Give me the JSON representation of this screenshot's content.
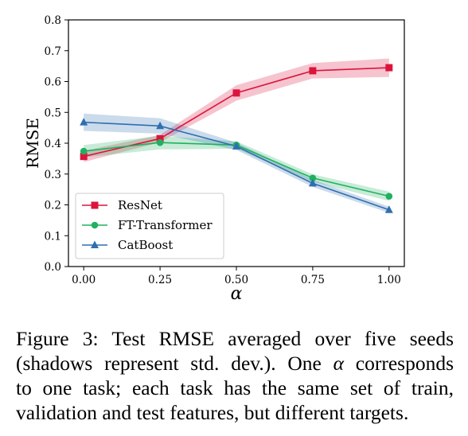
{
  "chart_data": {
    "type": "line",
    "ylabel": "RMSE",
    "xlabel": "α",
    "xlim": [
      -0.05,
      1.05
    ],
    "ylim": [
      0.0,
      0.8
    ],
    "x": [
      0.0,
      0.25,
      0.5,
      0.75,
      1.0
    ],
    "xtick_labels": [
      "0.00",
      "0.25",
      "0.50",
      "0.75",
      "1.00"
    ],
    "yticks": [
      0.0,
      0.1,
      0.2,
      0.3,
      0.4,
      0.5,
      0.6,
      0.7,
      0.8
    ],
    "ytick_labels": [
      "0.0",
      "0.1",
      "0.2",
      "0.3",
      "0.4",
      "0.5",
      "0.6",
      "0.7",
      "0.8"
    ],
    "grid": false,
    "legend_position": "lower-left",
    "series": [
      {
        "name": "ResNet",
        "color": "#dc143c",
        "marker": "square",
        "values": [
          0.357,
          0.415,
          0.563,
          0.635,
          0.645
        ],
        "std": [
          0.018,
          0.012,
          0.025,
          0.025,
          0.03
        ]
      },
      {
        "name": "FT-Transformer",
        "color": "#20b060",
        "marker": "circle",
        "values": [
          0.374,
          0.402,
          0.394,
          0.287,
          0.228
        ],
        "std": [
          0.02,
          0.022,
          0.012,
          0.012,
          0.015
        ]
      },
      {
        "name": "CatBoost",
        "color": "#2f6fb0",
        "marker": "triangle",
        "values": [
          0.468,
          0.456,
          0.39,
          0.27,
          0.184
        ],
        "std": [
          0.028,
          0.025,
          0.012,
          0.012,
          0.01
        ]
      }
    ]
  },
  "caption": {
    "line1": "Figure 3:  Test RMSE averaged over five seeds",
    "line2_a": "(shadows represent std. dev.). One ",
    "line2_alpha": "α",
    "line2_b": " corresponds",
    "line3": "to one task; each task has the same set of train,",
    "line4": "validation and test features, but different targets."
  }
}
